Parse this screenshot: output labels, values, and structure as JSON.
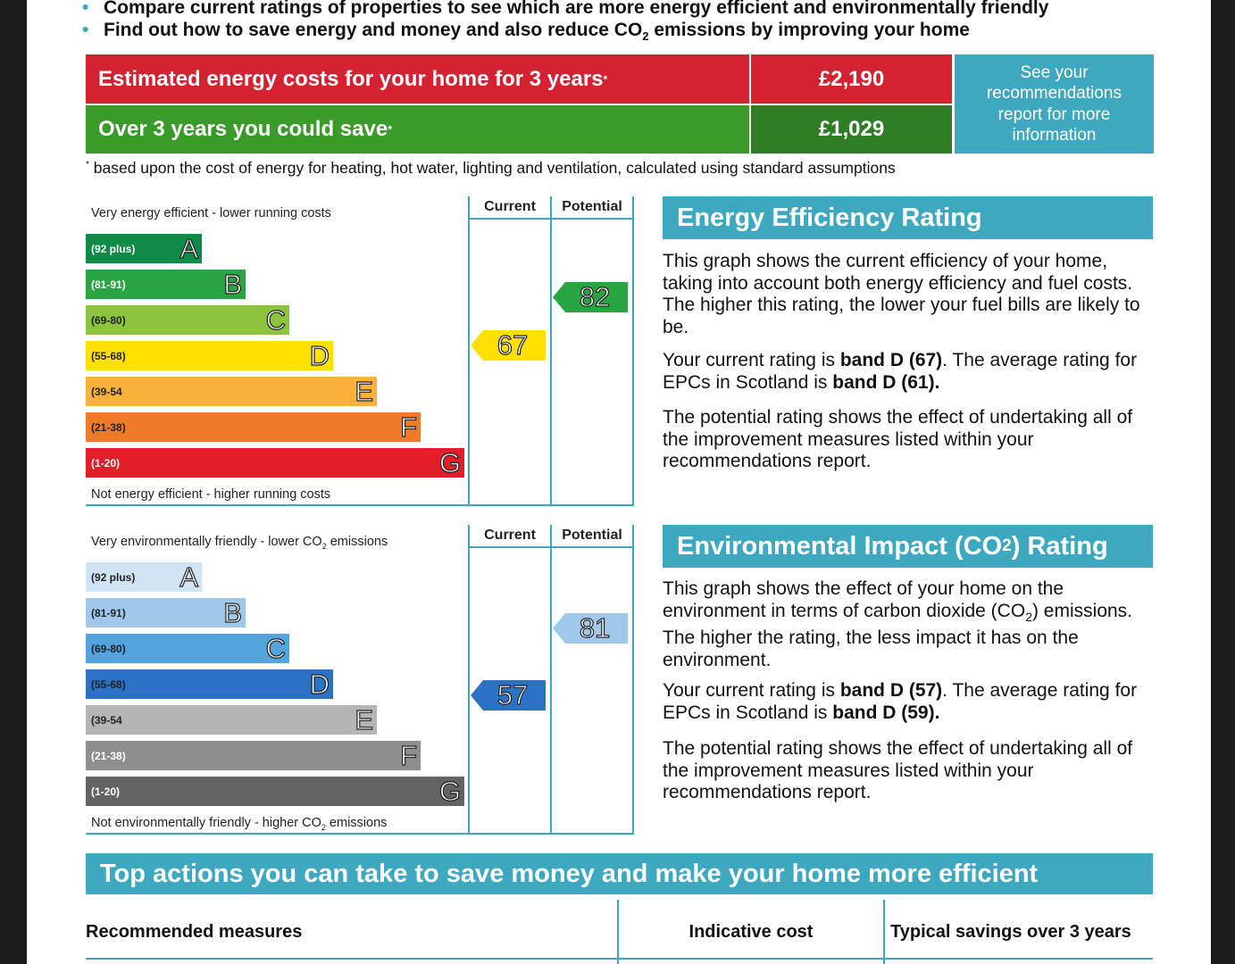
{
  "intro": {
    "bullet1": "Compare current ratings of properties to see which are more energy efficient and environmentally friendly",
    "bullet2_pre": "Find out how to save energy and money and also reduce CO",
    "bullet2_sub": "2",
    "bullet2_post": " emissions by improving your home"
  },
  "costs": {
    "estimated_label": "Estimated energy costs for your home for 3 years",
    "estimated_mark": "*",
    "estimated_value": "£2,190",
    "save_label": "Over 3 years you could save",
    "save_mark": "*",
    "save_value": "£1,029",
    "see_line1": "See your",
    "see_line2": "recommendations",
    "see_line3": "report for more",
    "see_line4": "information",
    "footnote_mark": "*",
    "footnote": " based upon the cost of energy for heating, hot water, lighting and ventilation, calculated using standard assumptions"
  },
  "energy_chart": {
    "top_caption": "Very energy efficient - lower running costs",
    "bottom_caption": "Not energy efficient - higher running costs",
    "col_current": "Current",
    "col_potential": "Potential",
    "bands": [
      {
        "range": "(92 plus)",
        "letter": "A",
        "color": "#0f8a47"
      },
      {
        "range": "(81-91)",
        "letter": "B",
        "color": "#2aa442"
      },
      {
        "range": "(69-80)",
        "letter": "C",
        "color": "#8cc43f"
      },
      {
        "range": "(55-68)",
        "letter": "D",
        "color": "#ffe000"
      },
      {
        "range": "(39-54",
        "letter": "E",
        "color": "#f9b13a"
      },
      {
        "range": "(21-38)",
        "letter": "F",
        "color": "#ef7b2a"
      },
      {
        "range": "(1-20)",
        "letter": "G",
        "color": "#e31d2a"
      }
    ],
    "current": "67",
    "current_color": "#ffe000",
    "potential": "82",
    "potential_color": "#2aa442"
  },
  "co2_chart": {
    "top_caption_pre": "Very environmentally friendly - lower CO",
    "top_caption_sub": "2",
    "top_caption_post": " emissions",
    "bottom_caption_pre": "Not environmentally friendly - higher CO",
    "bottom_caption_sub": "2",
    "bottom_caption_post": " emissions",
    "col_current": "Current",
    "col_potential": "Potential",
    "bands": [
      {
        "range": "(92 plus)",
        "letter": "A",
        "color": "#cfe4f5"
      },
      {
        "range": "(81-91)",
        "letter": "B",
        "color": "#9fc8ec"
      },
      {
        "range": "(69-80)",
        "letter": "C",
        "color": "#53a3df"
      },
      {
        "range": "(55-68)",
        "letter": "D",
        "color": "#2b72c4"
      },
      {
        "range": "(39-54",
        "letter": "E",
        "color": "#b5b5b5"
      },
      {
        "range": "(21-38)",
        "letter": "F",
        "color": "#8e8e8e"
      },
      {
        "range": "(1-20)",
        "letter": "G",
        "color": "#636363"
      }
    ],
    "current": "57",
    "current_color": "#2b72c4",
    "potential": "81",
    "potential_color": "#9fc8ec"
  },
  "efficiency_panel": {
    "heading": "Energy Efficiency Rating",
    "p1": "This graph shows the current efficiency of your home, taking into account both energy efficiency and fuel costs. The higher this rating, the lower your fuel bills are likely to be.",
    "p2_a": "Your current rating is ",
    "p2_b": "band D (67)",
    "p2_c": ". The average rating for EPCs in Scotland is ",
    "p2_d": "band D (61).",
    "p3": "The potential rating shows the effect of undertaking all of the improvement measures listed within your recommendations report."
  },
  "environment_panel": {
    "heading_pre": "Environmental Impact (CO",
    "heading_sub": "2",
    "heading_post": ") Rating",
    "p1_a": "This graph shows the effect of your home on the environment in terms of carbon dioxide (CO",
    "p1_sub": "2",
    "p1_b": ") emissions. The higher the rating, the less impact it has on the environment.",
    "p2_a": "Your current rating is ",
    "p2_b": "band D (57)",
    "p2_c": ". The average rating for EPCs in Scotland is ",
    "p2_d": "band D (59).",
    "p3": "The potential rating shows the effect of undertaking all of the improvement measures listed within your recommendations report."
  },
  "actions": {
    "heading": "Top actions you can take to save money and make your home more efficient",
    "col1": "Recommended measures",
    "col2": "Indicative cost",
    "col3": "Typical savings over 3 years"
  },
  "colors": {
    "accent": "#3da8bf",
    "cost_red": "#d42232",
    "save_green": "#3a9a2a"
  }
}
